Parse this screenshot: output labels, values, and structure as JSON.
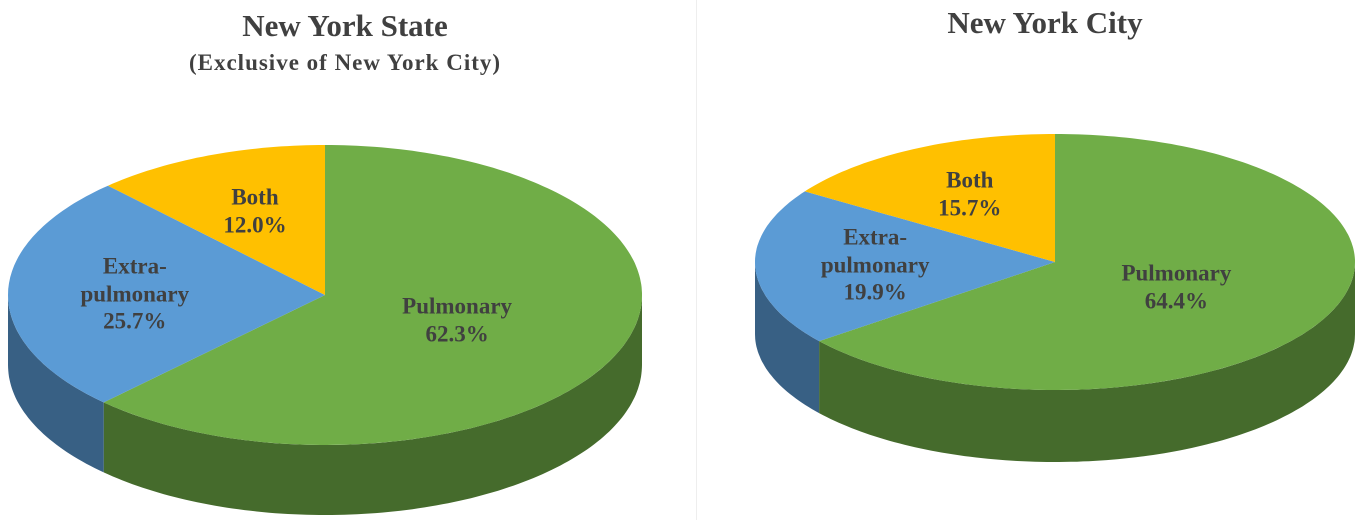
{
  "chart_data": [
    {
      "type": "pie3d",
      "title": "New York State",
      "subtitle": "(Exclusive of New York City)",
      "categories": [
        "Pulmonary",
        "Extra-pulmonary",
        "Both"
      ],
      "values": [
        62.3,
        25.7,
        12.0
      ],
      "value_labels": [
        "62.3%",
        "25.7%",
        "12.0%"
      ],
      "colors": [
        "#70ad47",
        "#5b9bd5",
        "#ffc000"
      ]
    },
    {
      "type": "pie3d",
      "title": "New York City",
      "categories": [
        "Pulmonary",
        "Extra-pulmonary",
        "Both"
      ],
      "values": [
        64.4,
        19.9,
        15.7
      ],
      "value_labels": [
        "64.4%",
        "19.9%",
        "15.7%"
      ],
      "colors": [
        "#70ad47",
        "#5b9bd5",
        "#ffc000"
      ]
    }
  ]
}
